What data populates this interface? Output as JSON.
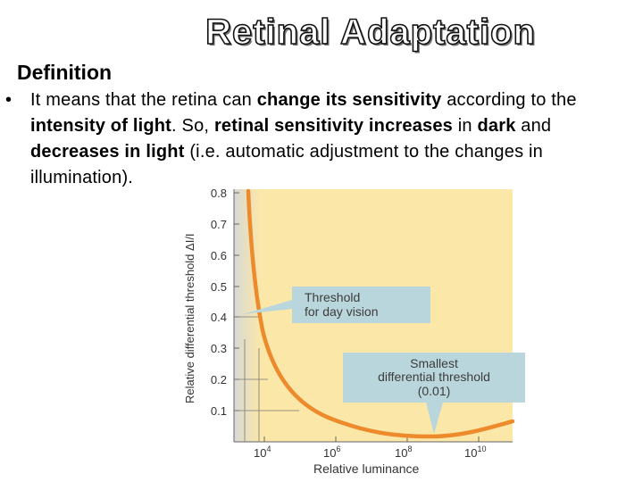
{
  "slide": {
    "title": "Retinal Adaptation",
    "definition_heading": "Definition",
    "bullet_symbol": "•",
    "bullet_segments": [
      {
        "text": "It means that the retina can ",
        "bold": false
      },
      {
        "text": "change its sensitivity",
        "bold": true
      },
      {
        "text": " according to the ",
        "bold": false
      },
      {
        "text": "intensity of light",
        "bold": true
      },
      {
        "text": ". So, ",
        "bold": false
      },
      {
        "text": "retinal sensitivity increases",
        "bold": true
      },
      {
        "text": " in ",
        "bold": false
      },
      {
        "text": "dark",
        "bold": true
      },
      {
        "text": " and ",
        "bold": false
      },
      {
        "text": "decreases in light",
        "bold": true
      },
      {
        "text": " (i.e. automatic adjustment to the changes in illumination).",
        "bold": false
      }
    ]
  },
  "figure": {
    "ylabel": "Relative differential threshold ΔI/I",
    "xlabel": "Relative luminance",
    "yticks": [
      "0.1",
      "0.2",
      "0.3",
      "0.4",
      "0.5",
      "0.6",
      "0.7",
      "0.8"
    ],
    "xticks": [
      {
        "base": "10",
        "exp": "4"
      },
      {
        "base": "10",
        "exp": "6"
      },
      {
        "base": "10",
        "exp": "8"
      },
      {
        "base": "10",
        "exp": "10"
      }
    ],
    "callout_day": [
      "Threshold",
      "for day vision"
    ],
    "callout_min": [
      "Smallest",
      "differential threshold",
      "(0.01)"
    ],
    "colors": {
      "background": "#fbe7a8",
      "dark_band": "#dfe0dc",
      "curve": "#ec8a2c",
      "callout": "#b9d6dd"
    }
  }
}
